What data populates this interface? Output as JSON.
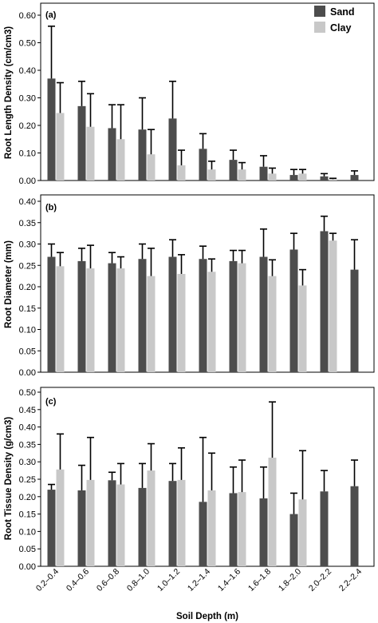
{
  "colors": {
    "sand": "#4d4d4d",
    "clay": "#c8c8c8",
    "error_bar": "#000000",
    "frame": "#000000"
  },
  "legend": {
    "sand": "Sand",
    "clay": "Clay",
    "placement": "top-right"
  },
  "x_axis_title": "Soil Depth (m)",
  "chart_data": [
    {
      "type": "bar",
      "panel_label": "(a)",
      "ylabel": "Root Length Density (cm/cm3)",
      "ylim": [
        0,
        0.6
      ],
      "y_ticks": [
        "0.00",
        "0.10",
        "0.20",
        "0.30",
        "0.40",
        "0.50",
        "0.60"
      ],
      "categories": [
        "0.2–0.4",
        "0.4–0.6",
        "0.6–0.8",
        "0.8–1.0",
        "1.0–1.2",
        "1.2–1.4",
        "1.4–1.6",
        "1.6–1.8",
        "1.8–2.0",
        "2.0–2.2",
        "2.2–2.4"
      ],
      "series": [
        {
          "name": "Sand",
          "values": [
            0.37,
            0.27,
            0.19,
            0.185,
            0.225,
            0.115,
            0.075,
            0.05,
            0.02,
            0.015,
            0.02
          ],
          "error_upper": [
            0.56,
            0.36,
            0.275,
            0.3,
            0.36,
            0.17,
            0.11,
            0.09,
            0.04,
            0.025,
            0.035
          ]
        },
        {
          "name": "Clay",
          "values": [
            0.245,
            0.195,
            0.15,
            0.095,
            0.055,
            0.04,
            0.04,
            0.025,
            0.025,
            0.005,
            null
          ],
          "error_upper": [
            0.355,
            0.315,
            0.275,
            0.185,
            0.11,
            0.07,
            0.065,
            0.045,
            0.04,
            0.008,
            null
          ]
        }
      ]
    },
    {
      "type": "bar",
      "panel_label": "(b)",
      "ylabel": "Root Diameter (mm)",
      "ylim": [
        0,
        0.4
      ],
      "y_ticks": [
        "0.00",
        "0.05",
        "0.10",
        "0.15",
        "0.20",
        "0.25",
        "0.30",
        "0.35",
        "0.40"
      ],
      "categories": [
        "0.2–0.4",
        "0.4–0.6",
        "0.6–0.8",
        "0.8–1.0",
        "1.0–1.2",
        "1.2–1.4",
        "1.4–1.6",
        "1.6–1.8",
        "1.8–2.0",
        "2.0–2.2",
        "2.2–2.4"
      ],
      "series": [
        {
          "name": "Sand",
          "values": [
            0.27,
            0.26,
            0.255,
            0.265,
            0.27,
            0.265,
            0.26,
            0.27,
            0.287,
            0.33,
            0.24
          ],
          "error_upper": [
            0.3,
            0.29,
            0.28,
            0.3,
            0.31,
            0.295,
            0.285,
            0.335,
            0.325,
            0.365,
            0.31
          ]
        },
        {
          "name": "Clay",
          "values": [
            0.248,
            0.243,
            0.243,
            0.225,
            0.23,
            0.235,
            0.255,
            0.225,
            0.203,
            0.308,
            null
          ],
          "error_upper": [
            0.28,
            0.297,
            0.27,
            0.29,
            0.275,
            0.265,
            0.285,
            0.263,
            0.24,
            0.325,
            null
          ]
        }
      ]
    },
    {
      "type": "bar",
      "panel_label": "(c)",
      "ylabel": "Root Tissue Density (g/cm3)",
      "ylim": [
        0,
        0.5
      ],
      "y_ticks": [
        "0.00",
        "0.05",
        "0.10",
        "0.15",
        "0.20",
        "0.25",
        "0.30",
        "0.35",
        "0.40",
        "0.45",
        "0.50"
      ],
      "categories": [
        "0.2–0.4",
        "0.4–0.6",
        "0.6–0.8",
        "0.8–1.0",
        "1.0–1.2",
        "1.2–1.4",
        "1.4–1.6",
        "1.6–1.8",
        "1.8–2.0",
        "2.0–2.2",
        "2.2–2.4"
      ],
      "series": [
        {
          "name": "Sand",
          "values": [
            0.22,
            0.218,
            0.247,
            0.225,
            0.245,
            0.185,
            0.21,
            0.195,
            0.15,
            0.215,
            0.23
          ],
          "error_upper": [
            0.235,
            0.29,
            0.27,
            0.295,
            0.295,
            0.37,
            0.285,
            0.285,
            0.21,
            0.275,
            0.305
          ]
        },
        {
          "name": "Clay",
          "values": [
            0.278,
            0.248,
            0.235,
            0.275,
            0.248,
            0.218,
            0.213,
            0.312,
            0.192,
            null,
            null
          ],
          "error_upper": [
            0.38,
            0.37,
            0.295,
            0.352,
            0.34,
            0.325,
            0.305,
            0.472,
            0.332,
            null,
            null
          ]
        }
      ]
    }
  ]
}
